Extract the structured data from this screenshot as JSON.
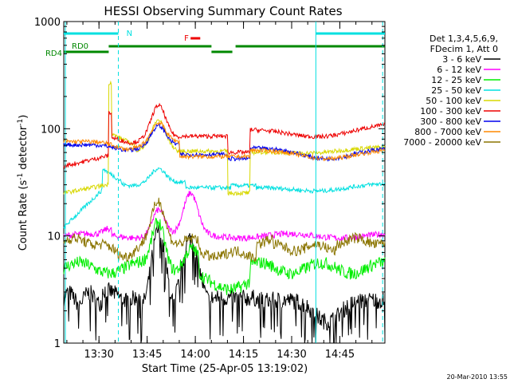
{
  "chart_data": {
    "type": "line",
    "title": "HESSI Observing Summary Count Rates",
    "xlabel": "Start Time (25-Apr-05 13:19:02)",
    "ylabel_main": "Count Rate (s",
    "ylabel_sup": "-1",
    "ylabel_mid": " detector",
    "ylabel_sup2": "-1",
    "ylabel_end": ")",
    "yscale": "log",
    "ylim": [
      1,
      1000
    ],
    "xlim_minutes": [
      0,
      100
    ],
    "x_ticks": [
      {
        "label": "13:30",
        "t": 10.97
      },
      {
        "label": "13:45",
        "t": 25.97
      },
      {
        "label": "14:00",
        "t": 40.97
      },
      {
        "label": "14:15",
        "t": 55.97
      },
      {
        "label": "14:30",
        "t": 70.97
      },
      {
        "label": "14:45",
        "t": 85.97
      }
    ],
    "y_ticks": [
      {
        "label": "1",
        "v": 1
      },
      {
        "label": "10",
        "v": 10
      },
      {
        "label": "100",
        "v": 100
      },
      {
        "label": "1000",
        "v": 1000
      }
    ],
    "legend_header": [
      "Det 1,3,4,5,6,9,",
      "FDecim 1, Att 0"
    ],
    "legend_placement": "right",
    "footer_date": "20-Mar-2010 13:55",
    "flags": {
      "N_label": "N",
      "F_label": "F",
      "RD0_label": "RD0",
      "RD4_label": "RD4"
    },
    "series": [
      {
        "name": "3 - 6 keV",
        "color": "#000000"
      },
      {
        "name": "6 - 12 keV",
        "color": "#ff00ff"
      },
      {
        "name": "12 - 25 keV",
        "color": "#00ee00"
      },
      {
        "name": "25 - 50 keV",
        "color": "#00e0e0"
      },
      {
        "name": "50 - 100 keV",
        "color": "#d8d800"
      },
      {
        "name": "100 - 300 keV",
        "color": "#ee0000"
      },
      {
        "name": "300 - 800 keV",
        "color": "#0000ee"
      },
      {
        "name": "800 - 7000 keV",
        "color": "#ff8800"
      },
      {
        "name": "7000 - 20000 keV",
        "color": "#8b7500"
      }
    ]
  }
}
